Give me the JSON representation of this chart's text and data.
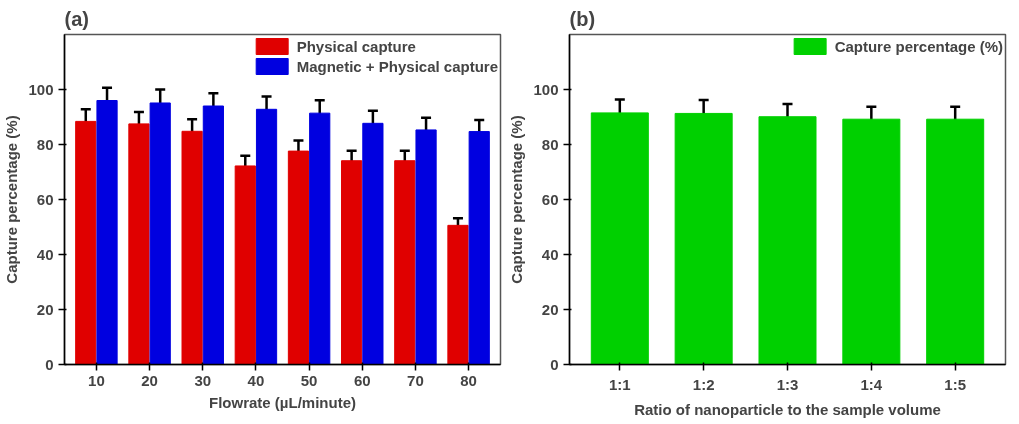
{
  "chart_data": [
    {
      "type": "bar",
      "title": "(a)",
      "xlabel": "Flowrate (µL/minute)",
      "ylabel": "Capture percentage (%)",
      "categories": [
        "10",
        "20",
        "30",
        "40",
        "50",
        "60",
        "70",
        "80"
      ],
      "ylim": [
        0,
        120
      ],
      "yticks": [
        0,
        20,
        40,
        60,
        80,
        100
      ],
      "grid": false,
      "legend": "top right",
      "series": [
        {
          "name": "Physical capture",
          "color": "#e00000",
          "values": [
            88.4,
            87.5,
            84.8,
            72.2,
            77.6,
            74.1,
            74.1,
            50.6
          ],
          "errors": [
            4.4,
            4.3,
            4.4,
            3.7,
            3.9,
            3.6,
            3.6,
            2.6
          ]
        },
        {
          "name": "Magnetic + Physical capture",
          "color": "#0000e0",
          "values": [
            96.0,
            95.1,
            94.0,
            92.8,
            91.4,
            87.7,
            85.3,
            84.7
          ],
          "errors": [
            4.6,
            4.9,
            4.6,
            4.7,
            4.7,
            4.6,
            4.4,
            4.2
          ]
        }
      ]
    },
    {
      "type": "bar",
      "title": "(b)",
      "xlabel": "Ratio of nanoparticle to the sample volume",
      "ylabel": "Capture percentage (%)",
      "categories": [
        "1:1",
        "1:2",
        "1:3",
        "1:4",
        "1:5"
      ],
      "ylim": [
        0,
        120
      ],
      "yticks": [
        0,
        20,
        40,
        60,
        80,
        100
      ],
      "grid": false,
      "legend": "top right",
      "series": [
        {
          "name": "Capture percentage (%)",
          "color": "#00d000",
          "values": [
            91.5,
            91.3,
            90.1,
            89.2,
            89.2
          ],
          "errors": [
            4.9,
            4.9,
            4.6,
            4.5,
            4.5
          ]
        }
      ]
    }
  ]
}
